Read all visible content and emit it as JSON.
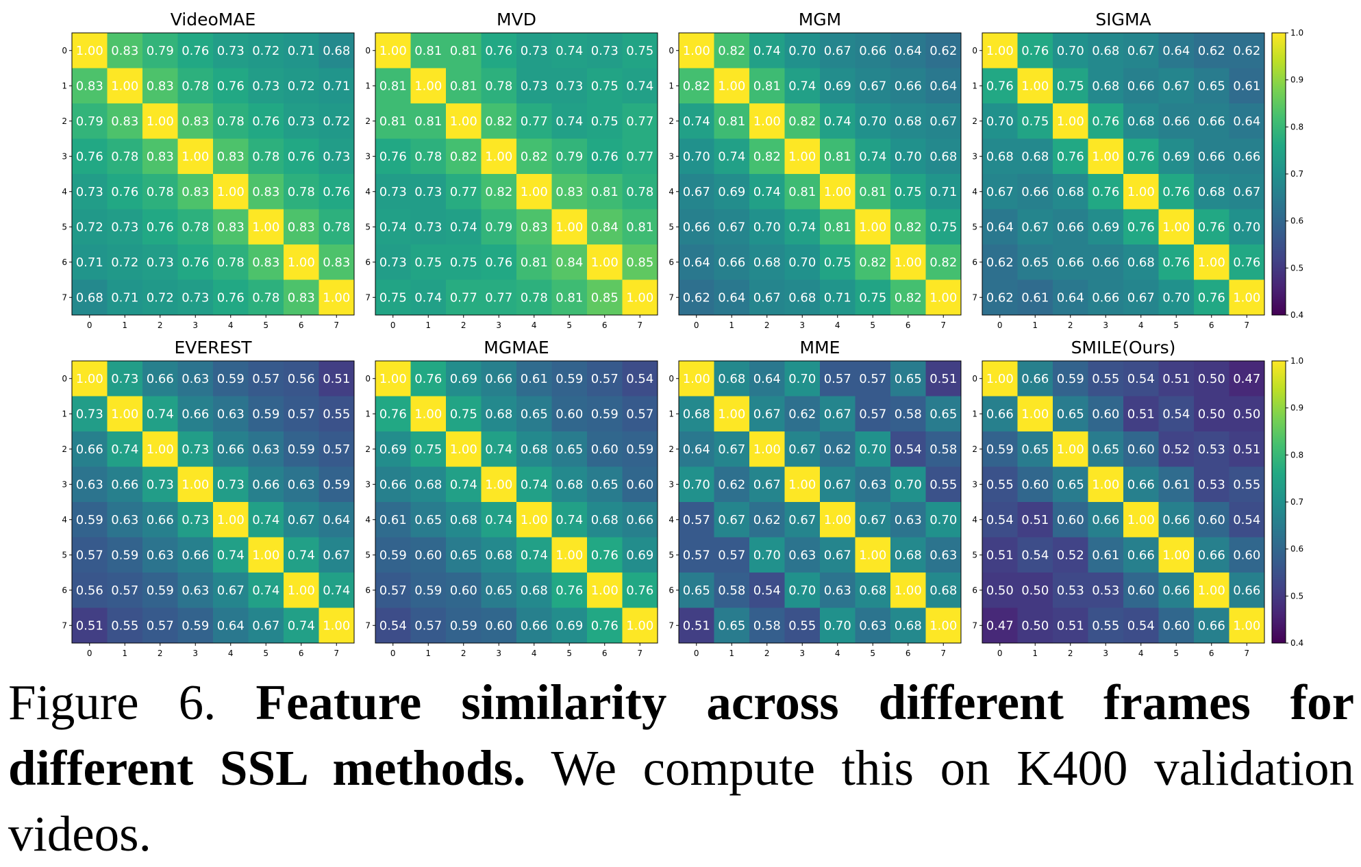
{
  "chart_data": [
    {
      "type": "heatmap",
      "title": "VideoMAE",
      "x": [
        "0",
        "1",
        "2",
        "3",
        "4",
        "5",
        "6",
        "7"
      ],
      "y": [
        "0",
        "1",
        "2",
        "3",
        "4",
        "5",
        "6",
        "7"
      ],
      "values": [
        [
          1.0,
          0.83,
          0.79,
          0.76,
          0.73,
          0.72,
          0.71,
          0.68
        ],
        [
          0.83,
          1.0,
          0.83,
          0.78,
          0.76,
          0.73,
          0.72,
          0.71
        ],
        [
          0.79,
          0.83,
          1.0,
          0.83,
          0.78,
          0.76,
          0.73,
          0.72
        ],
        [
          0.76,
          0.78,
          0.83,
          1.0,
          0.83,
          0.78,
          0.76,
          0.73
        ],
        [
          0.73,
          0.76,
          0.78,
          0.83,
          1.0,
          0.83,
          0.78,
          0.76
        ],
        [
          0.72,
          0.73,
          0.76,
          0.78,
          0.83,
          1.0,
          0.83,
          0.78
        ],
        [
          0.71,
          0.72,
          0.73,
          0.76,
          0.78,
          0.83,
          1.0,
          0.83
        ],
        [
          0.68,
          0.71,
          0.72,
          0.73,
          0.76,
          0.78,
          0.83,
          1.0
        ]
      ],
      "colorscale": "viridis",
      "vmin": 0.4,
      "vmax": 1.0
    },
    {
      "type": "heatmap",
      "title": "MVD",
      "x": [
        "0",
        "1",
        "2",
        "3",
        "4",
        "5",
        "6",
        "7"
      ],
      "y": [
        "0",
        "1",
        "2",
        "3",
        "4",
        "5",
        "6",
        "7"
      ],
      "values": [
        [
          1.0,
          0.81,
          0.81,
          0.76,
          0.73,
          0.74,
          0.73,
          0.75
        ],
        [
          0.81,
          1.0,
          0.81,
          0.78,
          0.73,
          0.73,
          0.75,
          0.74
        ],
        [
          0.81,
          0.81,
          1.0,
          0.82,
          0.77,
          0.74,
          0.75,
          0.77
        ],
        [
          0.76,
          0.78,
          0.82,
          1.0,
          0.82,
          0.79,
          0.76,
          0.77
        ],
        [
          0.73,
          0.73,
          0.77,
          0.82,
          1.0,
          0.83,
          0.81,
          0.78
        ],
        [
          0.74,
          0.73,
          0.74,
          0.79,
          0.83,
          1.0,
          0.84,
          0.81
        ],
        [
          0.73,
          0.75,
          0.75,
          0.76,
          0.81,
          0.84,
          1.0,
          0.85
        ],
        [
          0.75,
          0.74,
          0.77,
          0.77,
          0.78,
          0.81,
          0.85,
          1.0
        ]
      ],
      "colorscale": "viridis",
      "vmin": 0.4,
      "vmax": 1.0
    },
    {
      "type": "heatmap",
      "title": "MGM",
      "x": [
        "0",
        "1",
        "2",
        "3",
        "4",
        "5",
        "6",
        "7"
      ],
      "y": [
        "0",
        "1",
        "2",
        "3",
        "4",
        "5",
        "6",
        "7"
      ],
      "values": [
        [
          1.0,
          0.82,
          0.74,
          0.7,
          0.67,
          0.66,
          0.64,
          0.62
        ],
        [
          0.82,
          1.0,
          0.81,
          0.74,
          0.69,
          0.67,
          0.66,
          0.64
        ],
        [
          0.74,
          0.81,
          1.0,
          0.82,
          0.74,
          0.7,
          0.68,
          0.67
        ],
        [
          0.7,
          0.74,
          0.82,
          1.0,
          0.81,
          0.74,
          0.7,
          0.68
        ],
        [
          0.67,
          0.69,
          0.74,
          0.81,
          1.0,
          0.81,
          0.75,
          0.71
        ],
        [
          0.66,
          0.67,
          0.7,
          0.74,
          0.81,
          1.0,
          0.82,
          0.75
        ],
        [
          0.64,
          0.66,
          0.68,
          0.7,
          0.75,
          0.82,
          1.0,
          0.82
        ],
        [
          0.62,
          0.64,
          0.67,
          0.68,
          0.71,
          0.75,
          0.82,
          1.0
        ]
      ],
      "colorscale": "viridis",
      "vmin": 0.4,
      "vmax": 1.0
    },
    {
      "type": "heatmap",
      "title": "SIGMA",
      "x": [
        "0",
        "1",
        "2",
        "3",
        "4",
        "5",
        "6",
        "7"
      ],
      "y": [
        "0",
        "1",
        "2",
        "3",
        "4",
        "5",
        "6",
        "7"
      ],
      "values": [
        [
          1.0,
          0.76,
          0.7,
          0.68,
          0.67,
          0.64,
          0.62,
          0.62
        ],
        [
          0.76,
          1.0,
          0.75,
          0.68,
          0.66,
          0.67,
          0.65,
          0.61
        ],
        [
          0.7,
          0.75,
          1.0,
          0.76,
          0.68,
          0.66,
          0.66,
          0.64
        ],
        [
          0.68,
          0.68,
          0.76,
          1.0,
          0.76,
          0.69,
          0.66,
          0.66
        ],
        [
          0.67,
          0.66,
          0.68,
          0.76,
          1.0,
          0.76,
          0.68,
          0.67
        ],
        [
          0.64,
          0.67,
          0.66,
          0.69,
          0.76,
          1.0,
          0.76,
          0.7
        ],
        [
          0.62,
          0.65,
          0.66,
          0.66,
          0.68,
          0.76,
          1.0,
          0.76
        ],
        [
          0.62,
          0.61,
          0.64,
          0.66,
          0.67,
          0.7,
          0.76,
          1.0
        ]
      ],
      "colorscale": "viridis",
      "vmin": 0.4,
      "vmax": 1.0
    },
    {
      "type": "heatmap",
      "title": "EVEREST",
      "x": [
        "0",
        "1",
        "2",
        "3",
        "4",
        "5",
        "6",
        "7"
      ],
      "y": [
        "0",
        "1",
        "2",
        "3",
        "4",
        "5",
        "6",
        "7"
      ],
      "values": [
        [
          1.0,
          0.73,
          0.66,
          0.63,
          0.59,
          0.57,
          0.56,
          0.51
        ],
        [
          0.73,
          1.0,
          0.74,
          0.66,
          0.63,
          0.59,
          0.57,
          0.55
        ],
        [
          0.66,
          0.74,
          1.0,
          0.73,
          0.66,
          0.63,
          0.59,
          0.57
        ],
        [
          0.63,
          0.66,
          0.73,
          1.0,
          0.73,
          0.66,
          0.63,
          0.59
        ],
        [
          0.59,
          0.63,
          0.66,
          0.73,
          1.0,
          0.74,
          0.67,
          0.64
        ],
        [
          0.57,
          0.59,
          0.63,
          0.66,
          0.74,
          1.0,
          0.74,
          0.67
        ],
        [
          0.56,
          0.57,
          0.59,
          0.63,
          0.67,
          0.74,
          1.0,
          0.74
        ],
        [
          0.51,
          0.55,
          0.57,
          0.59,
          0.64,
          0.67,
          0.74,
          1.0
        ]
      ],
      "colorscale": "viridis",
      "vmin": 0.4,
      "vmax": 1.0
    },
    {
      "type": "heatmap",
      "title": "MGMAE",
      "x": [
        "0",
        "1",
        "2",
        "3",
        "4",
        "5",
        "6",
        "7"
      ],
      "y": [
        "0",
        "1",
        "2",
        "3",
        "4",
        "5",
        "6",
        "7"
      ],
      "values": [
        [
          1.0,
          0.76,
          0.69,
          0.66,
          0.61,
          0.59,
          0.57,
          0.54
        ],
        [
          0.76,
          1.0,
          0.75,
          0.68,
          0.65,
          0.6,
          0.59,
          0.57
        ],
        [
          0.69,
          0.75,
          1.0,
          0.74,
          0.68,
          0.65,
          0.6,
          0.59
        ],
        [
          0.66,
          0.68,
          0.74,
          1.0,
          0.74,
          0.68,
          0.65,
          0.6
        ],
        [
          0.61,
          0.65,
          0.68,
          0.74,
          1.0,
          0.74,
          0.68,
          0.66
        ],
        [
          0.59,
          0.6,
          0.65,
          0.68,
          0.74,
          1.0,
          0.76,
          0.69
        ],
        [
          0.57,
          0.59,
          0.6,
          0.65,
          0.68,
          0.76,
          1.0,
          0.76
        ],
        [
          0.54,
          0.57,
          0.59,
          0.6,
          0.66,
          0.69,
          0.76,
          1.0
        ]
      ],
      "colorscale": "viridis",
      "vmin": 0.4,
      "vmax": 1.0
    },
    {
      "type": "heatmap",
      "title": "MME",
      "x": [
        "0",
        "1",
        "2",
        "3",
        "4",
        "5",
        "6",
        "7"
      ],
      "y": [
        "0",
        "1",
        "2",
        "3",
        "4",
        "5",
        "6",
        "7"
      ],
      "values": [
        [
          1.0,
          0.68,
          0.64,
          0.7,
          0.57,
          0.57,
          0.65,
          0.51
        ],
        [
          0.68,
          1.0,
          0.67,
          0.62,
          0.67,
          0.57,
          0.58,
          0.65
        ],
        [
          0.64,
          0.67,
          1.0,
          0.67,
          0.62,
          0.7,
          0.54,
          0.58
        ],
        [
          0.7,
          0.62,
          0.67,
          1.0,
          0.67,
          0.63,
          0.7,
          0.55
        ],
        [
          0.57,
          0.67,
          0.62,
          0.67,
          1.0,
          0.67,
          0.63,
          0.7
        ],
        [
          0.57,
          0.57,
          0.7,
          0.63,
          0.67,
          1.0,
          0.68,
          0.63
        ],
        [
          0.65,
          0.58,
          0.54,
          0.7,
          0.63,
          0.68,
          1.0,
          0.68
        ],
        [
          0.51,
          0.65,
          0.58,
          0.55,
          0.7,
          0.63,
          0.68,
          1.0
        ]
      ],
      "colorscale": "viridis",
      "vmin": 0.4,
      "vmax": 1.0
    },
    {
      "type": "heatmap",
      "title": "SMILE(Ours)",
      "x": [
        "0",
        "1",
        "2",
        "3",
        "4",
        "5",
        "6",
        "7"
      ],
      "y": [
        "0",
        "1",
        "2",
        "3",
        "4",
        "5",
        "6",
        "7"
      ],
      "values": [
        [
          1.0,
          0.66,
          0.59,
          0.55,
          0.54,
          0.51,
          0.5,
          0.47
        ],
        [
          0.66,
          1.0,
          0.65,
          0.6,
          0.51,
          0.54,
          0.5,
          0.5
        ],
        [
          0.59,
          0.65,
          1.0,
          0.65,
          0.6,
          0.52,
          0.53,
          0.51
        ],
        [
          0.55,
          0.6,
          0.65,
          1.0,
          0.66,
          0.61,
          0.53,
          0.55
        ],
        [
          0.54,
          0.51,
          0.6,
          0.66,
          1.0,
          0.66,
          0.6,
          0.54
        ],
        [
          0.51,
          0.54,
          0.52,
          0.61,
          0.66,
          1.0,
          0.66,
          0.6
        ],
        [
          0.5,
          0.5,
          0.53,
          0.53,
          0.6,
          0.66,
          1.0,
          0.66
        ],
        [
          0.47,
          0.5,
          0.51,
          0.55,
          0.54,
          0.6,
          0.66,
          1.0
        ]
      ],
      "colorscale": "viridis",
      "vmin": 0.4,
      "vmax": 1.0
    }
  ],
  "colorbar_ticks": [
    "1.0",
    "0.9",
    "0.8",
    "0.7",
    "0.6",
    "0.5",
    "0.4"
  ],
  "caption": {
    "label": "Figure 6.",
    "bold": "Feature similarity across different frames for different SSL methods.",
    "text": "We compute this on K400 validation videos."
  }
}
